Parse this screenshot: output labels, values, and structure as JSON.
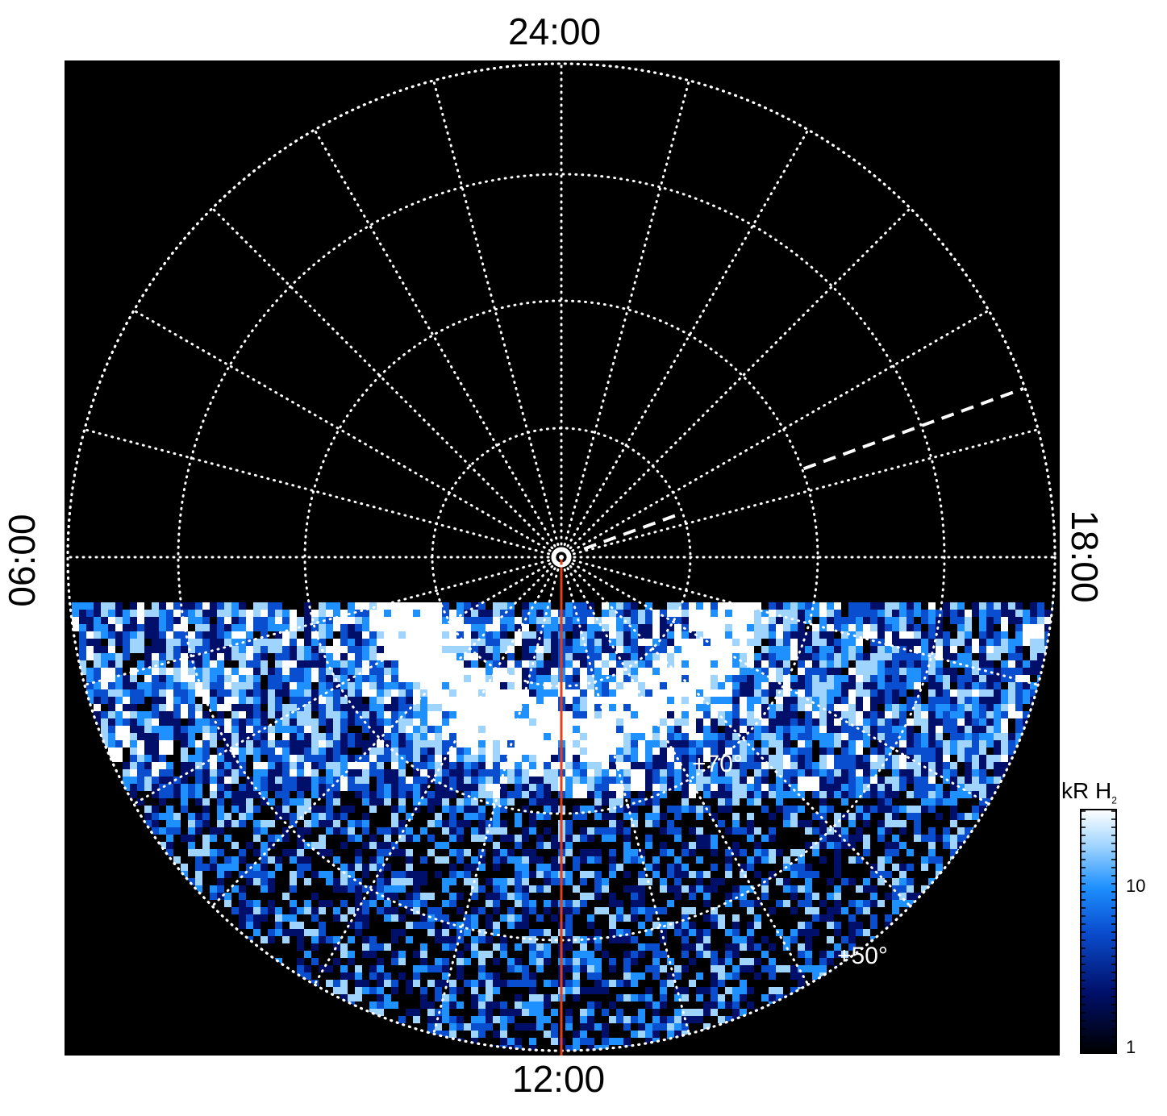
{
  "labels": {
    "top": "24:00",
    "bottom": "12:00",
    "left": "06:00",
    "right": "18:00",
    "lat_70": "+70°",
    "lat_50": "+50°"
  },
  "colorbar": {
    "unit": "kR H",
    "subscript": "2",
    "ticks": [
      "10",
      "1"
    ],
    "colors": [
      "#000000",
      "#00106a",
      "#0a4ed0",
      "#1e90ff",
      "#9fd4ff",
      "#ffffff"
    ]
  },
  "colors": {
    "background": "#000000",
    "grid": "#ffffff",
    "meridian": "#e0401c"
  }
}
